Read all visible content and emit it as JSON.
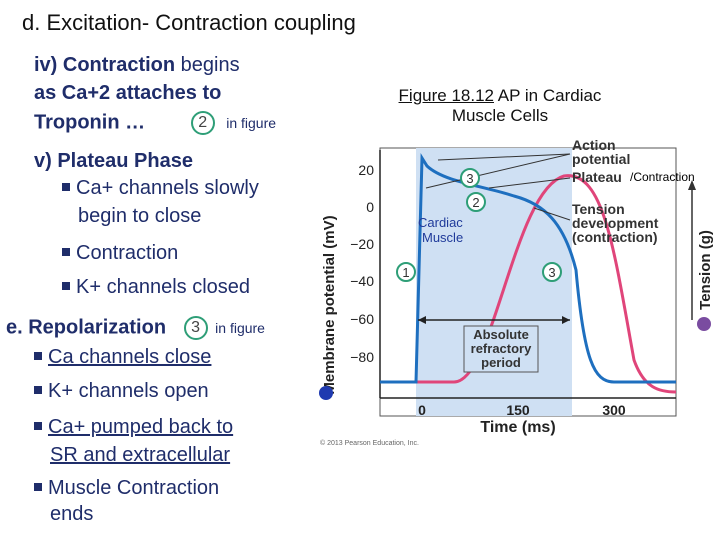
{
  "title": "d.  Excitation- Contraction coupling",
  "section_iv": {
    "line1_bold": "iv) Contraction",
    "line1_rest": " begins",
    "line2": "as Ca+2 attaches to",
    "line3": "Troponin …",
    "marker": "2",
    "marker_note": "in figure"
  },
  "section_v": {
    "heading": "v) Plateau Phase",
    "bullets": [
      "Ca+ channels slowly",
      "begin to close",
      "Contraction",
      "K+ channels closed"
    ]
  },
  "section_e": {
    "heading": "e.  Repolarization",
    "marker": "3",
    "marker_note": "in figure",
    "bullets": [
      "Ca channels close",
      "K+ channels open",
      "Ca+ pumped back to",
      "SR and extracellular",
      "Muscle Contraction",
      "ends"
    ]
  },
  "figure": {
    "caption_prefix": "Figure 18.12",
    "caption_rest": "AP in Cardiac",
    "caption_line2": "Muscle Cells",
    "contraction_label": "/Contraction",
    "cardiac_muscle_label": "Cardiac\nMuscle",
    "ylabel_left": "Membrane potential (mV)",
    "ylabel_right": "Tension (g)",
    "xlabel": "Time (ms)",
    "y_ticks": [
      "20",
      "0",
      "−20",
      "−40",
      "−60",
      "−80"
    ],
    "x_ticks": [
      "0",
      "150",
      "300"
    ],
    "label_action_potential": "Action\npotential",
    "label_plateau": "Plateau",
    "label_tension": "Tension\ndevelopment\n(contraction)",
    "label_refractory": "Absolute\nrefractory\nperiod",
    "copyright": "© 2013 Pearson Education, Inc.",
    "markers": [
      "1",
      "2",
      "3",
      "3"
    ],
    "colors": {
      "ap_curve": "#1e6fbf",
      "tension_curve": "#e0457a",
      "panel_bg": "#cfe0f3",
      "marker_green": "#2e9e77"
    }
  }
}
